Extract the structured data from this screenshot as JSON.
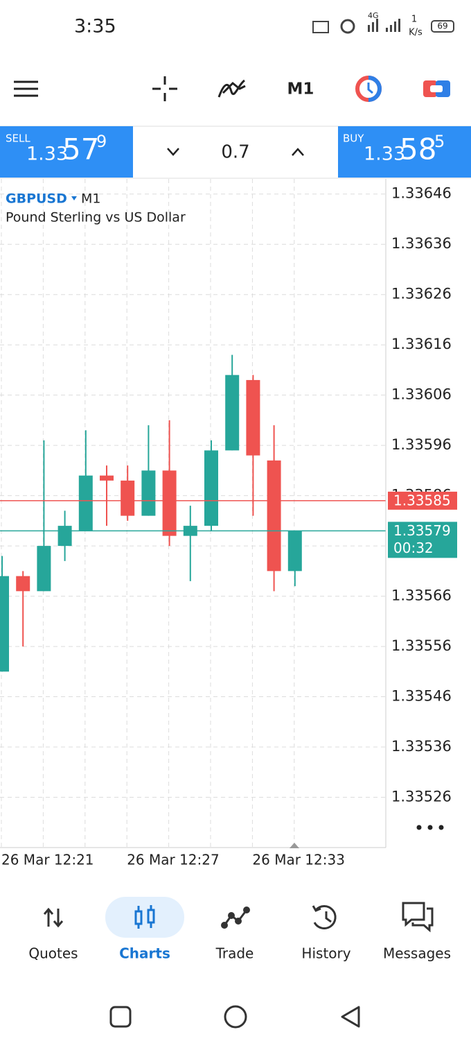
{
  "status_bar": {
    "time": "3:35",
    "network": "4G",
    "speed_value": "1",
    "speed_unit": "K/s",
    "battery": "69"
  },
  "toolbar": {
    "timeframe": "M1"
  },
  "trade_panel": {
    "sell": {
      "label": "SELL",
      "prefix": "1.33",
      "big": "57",
      "pip": "9"
    },
    "volume": "0.7",
    "buy": {
      "label": "BUY",
      "prefix": "1.33",
      "big": "58",
      "pip": "5"
    }
  },
  "chart_data": {
    "type": "candlestick",
    "symbol": "GBPUSD",
    "timeframe": "M1",
    "description": "Pound Sterling vs US Dollar",
    "categories": [
      "26 Mar 12:21",
      null,
      null,
      null,
      null,
      null,
      "26 Mar 12:27",
      null,
      null,
      null,
      null,
      null,
      "26 Mar 12:33",
      null,
      null
    ],
    "open": [
      1.33551,
      1.3357,
      1.33567,
      1.33576,
      1.33579,
      1.3359,
      1.33589,
      1.33582,
      1.33591,
      1.33578,
      1.3358,
      1.33595,
      1.33609,
      1.33593,
      1.33571
    ],
    "high": [
      1.33574,
      1.33571,
      1.33597,
      1.33583,
      1.33599,
      1.33592,
      1.33592,
      1.336,
      1.33601,
      1.33584,
      1.33597,
      1.33614,
      1.3361,
      1.336,
      1.33579
    ],
    "low": [
      1.33551,
      1.33556,
      1.33567,
      1.33573,
      1.33579,
      1.3358,
      1.33581,
      1.33582,
      1.33576,
      1.33569,
      1.33579,
      1.33595,
      1.33582,
      1.33567,
      1.33568
    ],
    "close": [
      1.3357,
      1.33567,
      1.33576,
      1.3358,
      1.3359,
      1.33589,
      1.33582,
      1.33591,
      1.33578,
      1.3358,
      1.33595,
      1.3361,
      1.33594,
      1.33571,
      1.33579
    ],
    "colors": {
      "up": "#26a69a",
      "down": "#ef5350"
    },
    "ylim": [
      1.33516,
      1.33649
    ],
    "yticks": [
      1.33646,
      1.33636,
      1.33626,
      1.33616,
      1.33606,
      1.33596,
      1.33586,
      1.33576,
      1.33566,
      1.33556,
      1.33546,
      1.33536,
      1.33526
    ],
    "grid": true,
    "ask": {
      "value": 1.33585,
      "color": "#ef5350"
    },
    "bid": {
      "value": 1.33579,
      "timer": "00:32",
      "color": "#26a69a"
    }
  },
  "nav": {
    "items": [
      "Quotes",
      "Charts",
      "Trade",
      "History",
      "Messages"
    ],
    "active": 1
  }
}
